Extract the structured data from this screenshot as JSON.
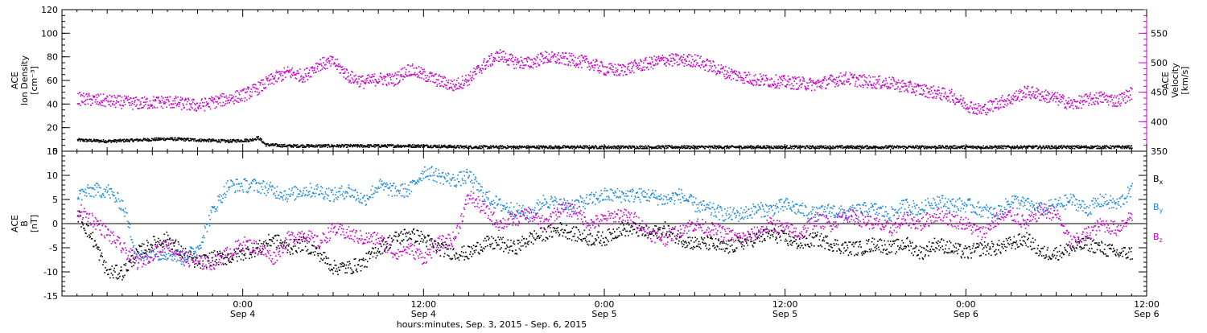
{
  "chart_data": [
    {
      "type": "scatter",
      "panel": "top",
      "ylabel_left": [
        "ACE",
        "Ion Density",
        "[cm⁻³]"
      ],
      "ylabel_right": [
        "ACE",
        "Velocity",
        "[km/s]"
      ],
      "ylim_left": [
        0,
        120
      ],
      "yticks_left": [
        "0",
        "20",
        "40",
        "60",
        "80",
        "100",
        "120"
      ],
      "ylim_right": [
        350,
        590
      ],
      "yticks_right": [
        "350",
        "400",
        "450",
        "500",
        "550"
      ],
      "colors": {
        "density": "#000000",
        "velocity": "#cc00cc"
      },
      "series": [
        {
          "axis": "left",
          "color": "#000000",
          "x": [
            -11,
            -9,
            -7,
            -5,
            -3,
            -1,
            0.5,
            1,
            1.5,
            3,
            6,
            9,
            12,
            15,
            18,
            21,
            24,
            27,
            30,
            33,
            36,
            39,
            42,
            45,
            48,
            51,
            54,
            57,
            59
          ],
          "y": [
            10,
            9,
            10,
            11,
            10,
            9,
            10,
            12,
            6,
            5,
            5,
            5,
            5,
            4,
            4,
            4,
            4,
            4,
            4,
            4,
            4,
            4,
            4,
            4,
            4,
            4,
            4,
            4,
            4
          ]
        },
        {
          "axis": "right",
          "color": "#cc00cc",
          "x": [
            -11,
            -9,
            -7,
            -5,
            -3,
            -1,
            0,
            1,
            2,
            3,
            4,
            5,
            6,
            7,
            8,
            9,
            10,
            11,
            12,
            13,
            14,
            15,
            16,
            17,
            18,
            19,
            20,
            21,
            22,
            23,
            24,
            25,
            26,
            27,
            28,
            29,
            30,
            31,
            32,
            33,
            34,
            35,
            36,
            37,
            38,
            39,
            40,
            41,
            42,
            43,
            44,
            45,
            46,
            47,
            48,
            49,
            50,
            51,
            52,
            53,
            54,
            55,
            56,
            57,
            58,
            59
          ],
          "y": [
            440,
            436,
            432,
            435,
            428,
            440,
            446,
            458,
            474,
            485,
            478,
            498,
            502,
            478,
            468,
            474,
            472,
            490,
            480,
            470,
            462,
            474,
            498,
            514,
            502,
            500,
            510,
            508,
            505,
            500,
            490,
            488,
            495,
            500,
            506,
            505,
            505,
            495,
            485,
            478,
            472,
            470,
            468,
            466,
            464,
            470,
            475,
            470,
            468,
            466,
            460,
            455,
            450,
            445,
            430,
            420,
            432,
            440,
            452,
            446,
            440,
            430,
            438,
            442,
            436,
            450
          ]
        }
      ]
    },
    {
      "type": "scatter",
      "panel": "bottom",
      "ylabel_left": [
        "ACE",
        "B",
        "[nT]"
      ],
      "ylim": [
        -15,
        15
      ],
      "yticks": [
        "-15",
        "-10",
        "-5",
        "0",
        "5",
        "10",
        "15"
      ],
      "xlabel": "hours:minutes, Sep.  3, 2015 - Sep.  6, 2015",
      "xlim": [
        -12,
        60
      ],
      "xticks": [
        {
          "x": 0,
          "line1": "0:00",
          "line2": "Sep 4"
        },
        {
          "x": 12,
          "line1": "12:00",
          "line2": "Sep 4"
        },
        {
          "x": 24,
          "line1": "0:00",
          "line2": "Sep 5"
        },
        {
          "x": 36,
          "line1": "12:00",
          "line2": "Sep 5"
        },
        {
          "x": 48,
          "line1": "0:00",
          "line2": "Sep 6"
        },
        {
          "x": 60,
          "line1": "12:00",
          "line2": "Sep 6"
        }
      ],
      "series": [
        {
          "name": "Bx",
          "color": "#000000",
          "x": [
            -11,
            -10,
            -9,
            -8,
            -7,
            -6,
            -5,
            -4,
            -3,
            -2,
            -1,
            0,
            1,
            2,
            3,
            4,
            5,
            6,
            7,
            8,
            9,
            10,
            11,
            12,
            13,
            14,
            15,
            16,
            17,
            18,
            19,
            20,
            21,
            22,
            23,
            24,
            25,
            26,
            27,
            28,
            29,
            30,
            31,
            32,
            33,
            34,
            35,
            36,
            37,
            38,
            39,
            40,
            41,
            42,
            43,
            44,
            45,
            46,
            47,
            48,
            49,
            50,
            51,
            52,
            53,
            54,
            55,
            56,
            57,
            58,
            59
          ],
          "y": [
            2,
            -3,
            -10,
            -10,
            -6,
            -4,
            -3,
            -6,
            -8,
            -7,
            -7,
            -6,
            -5,
            -3,
            -5,
            -4,
            -6,
            -9,
            -9,
            -8,
            -5,
            -3,
            -2,
            -3,
            -5,
            -6,
            -6,
            -4,
            -4,
            -5,
            -3,
            -2,
            -1,
            -2,
            -3,
            -3,
            -1,
            -1,
            -2,
            -1,
            -3,
            -4,
            -4,
            -5,
            -4,
            -3,
            -2,
            -3,
            -4,
            -3,
            -4,
            -5,
            -5,
            -4,
            -5,
            -4,
            -6,
            -4,
            -5,
            -6,
            -5,
            -5,
            -4,
            -3,
            -6,
            -6,
            -5,
            -4,
            -5,
            -6,
            -6
          ]
        },
        {
          "name": "By",
          "color": "#1a88dd",
          "x": [
            -11,
            -10,
            -9,
            -8,
            -7,
            -6,
            -5,
            -4,
            -3,
            -2,
            -1,
            0,
            1,
            2,
            3,
            4,
            5,
            6,
            7,
            8,
            9,
            10,
            11,
            12,
            13,
            14,
            15,
            16,
            17,
            18,
            19,
            20,
            21,
            22,
            23,
            24,
            25,
            26,
            27,
            28,
            29,
            30,
            31,
            32,
            33,
            34,
            35,
            36,
            37,
            38,
            39,
            40,
            41,
            42,
            43,
            44,
            45,
            46,
            47,
            48,
            49,
            50,
            51,
            52,
            53,
            54,
            55,
            56,
            57,
            58,
            59
          ],
          "y": [
            6,
            7,
            7,
            4,
            -7,
            -6,
            -6,
            -7,
            -5,
            3,
            8,
            8,
            8,
            7,
            6,
            7,
            7,
            6,
            7,
            5,
            8,
            7,
            7,
            11,
            10,
            9,
            10,
            6,
            4,
            3,
            2,
            5,
            4,
            4,
            5,
            6,
            6,
            6,
            6,
            5,
            6,
            4,
            3,
            2,
            2,
            3,
            3,
            4,
            3,
            2,
            3,
            2,
            3,
            3,
            2,
            4,
            3,
            5,
            4,
            4,
            3,
            2,
            5,
            4,
            3,
            4,
            5,
            3,
            5,
            4,
            7
          ]
        },
        {
          "name": "Bz",
          "color": "#cc00cc",
          "x": [
            -11,
            -10,
            -9,
            -8,
            -7,
            -6,
            -5,
            -4,
            -3,
            -2,
            -1,
            0,
            1,
            2,
            3,
            4,
            5,
            6,
            7,
            8,
            9,
            10,
            11,
            12,
            13,
            14,
            15,
            16,
            17,
            18,
            19,
            20,
            21,
            22,
            23,
            24,
            25,
            26,
            27,
            28,
            29,
            30,
            31,
            32,
            33,
            34,
            35,
            36,
            37,
            38,
            39,
            40,
            41,
            42,
            43,
            44,
            45,
            46,
            47,
            48,
            49,
            50,
            51,
            52,
            53,
            54,
            55,
            56,
            57,
            58,
            59
          ],
          "y": [
            3,
            1,
            -2,
            -5,
            -8,
            -6,
            -4,
            -7,
            -8,
            -8,
            -6,
            -4,
            -5,
            -7,
            -3,
            -2,
            -4,
            -1,
            -2,
            -3,
            -3,
            -6,
            -5,
            -7,
            -4,
            -3,
            6,
            3,
            0,
            1,
            2,
            0,
            3,
            3,
            0,
            1,
            2,
            1,
            -2,
            -3,
            -1,
            0,
            -1,
            -2,
            -3,
            -2,
            0,
            -1,
            -2,
            1,
            0,
            2,
            1,
            0,
            -1,
            1,
            0,
            2,
            1,
            0,
            -2,
            1,
            2,
            0,
            3,
            2,
            -4,
            -2,
            0,
            -1,
            2
          ]
        }
      ],
      "legend": [
        {
          "label": "B",
          "sub": "x",
          "color": "#000000"
        },
        {
          "label": "B",
          "sub": "y",
          "color": "#1a88dd"
        },
        {
          "label": "B",
          "sub": "z",
          "color": "#cc00cc"
        }
      ]
    }
  ]
}
